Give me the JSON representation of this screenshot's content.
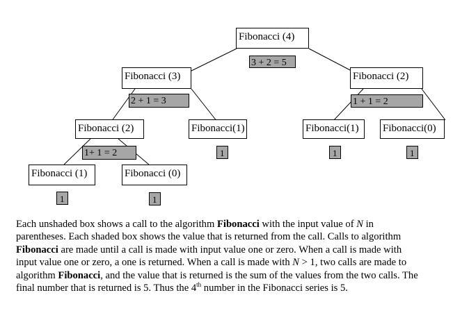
{
  "tree": {
    "nodes": {
      "n4": "Fibonacci (4)",
      "n3": "Fibonacci (3)",
      "n2r": "Fibonacci (2)",
      "n2l": "Fibonacci (2)",
      "n1a": "Fibonacci(1)",
      "n1b": "Fibonacci(1)",
      "n0b": "Fibonacci(0)",
      "n1l": "Fibonacci (1)",
      "n0l": "Fibonacci (0)"
    },
    "results": {
      "r4": "3 + 2 = 5",
      "r3": "2 + 1 = 3",
      "r2r": "1 + 1 = 2",
      "r2l": "1+ 1 = 2",
      "leaf1a": "1",
      "leaf1b": "1",
      "leaf0b": "1",
      "leaf1l": "1",
      "leaf0l": "1"
    }
  },
  "caption": {
    "p1": "Each unshaded box shows a call to the algorithm ",
    "b1": "Fibonacci",
    "p2": " with the input value of ",
    "i1": "N",
    "p3": " in parentheses.  Each shaded box shows the value that is returned from the call.  Calls to algorithm ",
    "b2": "Fibonacci",
    "p4": " are made until a call is made with input value one or zero.  When a call is made with input value one or zero, a one is returned.  When a call is made with ",
    "i2": "N",
    "p5": " > 1, two calls are made to algorithm ",
    "b3": "Fibonacci",
    "p6": ", and the value that is returned is the sum of the values from the two calls.  The final number that is returned is 5.  Thus the 4",
    "sup1": "th",
    "p7": " number in the Fibonacci series is 5."
  }
}
